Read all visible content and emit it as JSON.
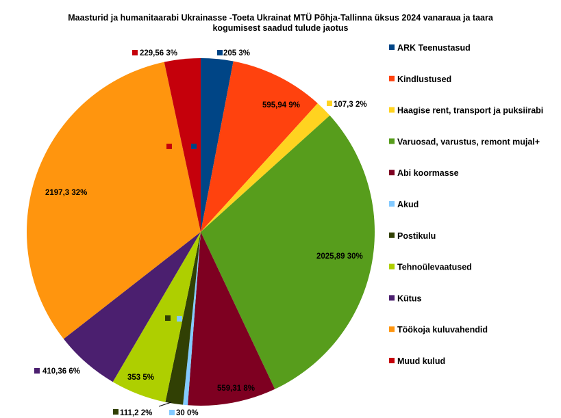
{
  "chart_data": {
    "type": "pie",
    "title_line1": "Maasturid ja humanitaarabi Ukrainasse -Toeta Ukrainat MTÜ Põhja-Tallinna üksus 2024 vanaraua ja taara",
    "title_line2": "kogumisest saadud tulude jaotus",
    "legend_position": "right",
    "slices": [
      {
        "name": "ARK Teenustasud",
        "value": 205,
        "label": "205 3%",
        "color": "#004586"
      },
      {
        "name": "Kindlustused",
        "value": 595.94,
        "label": "595,94 9%",
        "color": "#ff420e"
      },
      {
        "name": "Haagise rent, transport ja puksiirabi",
        "value": 107.3,
        "label": "107,3 2%",
        "color": "#ffd320"
      },
      {
        "name": "Varuosad, varustus, remont mujal+",
        "value": 2025.89,
        "label": "2025,89 30%",
        "color": "#579d1c"
      },
      {
        "name": "Abi koormasse",
        "value": 559.31,
        "label": "559,31 8%",
        "color": "#7e0021"
      },
      {
        "name": "Akud",
        "value": 30,
        "label": "30 0%",
        "color": "#83caff"
      },
      {
        "name": "Postikulu",
        "value": 111.2,
        "label": "111,2 2%",
        "color": "#314004"
      },
      {
        "name": "Tehnoülevaatused",
        "value": 353,
        "label": "353 5%",
        "color": "#aecf00"
      },
      {
        "name": "Kütus",
        "value": 410.36,
        "label": "410,36 6%",
        "color": "#4b1f6f"
      },
      {
        "name": "Töökoja kuluvahendid",
        "value": 2197.3,
        "label": "2197,3 32%",
        "color": "#ff950e"
      },
      {
        "name": "Muud kulud",
        "value": 229.56,
        "label": "229,56 3%",
        "color": "#c5000b"
      }
    ]
  }
}
